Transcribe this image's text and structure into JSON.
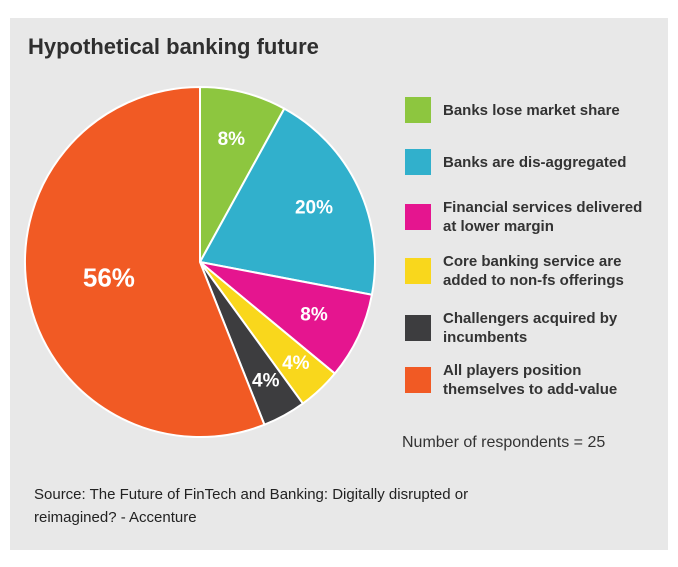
{
  "chart_data": {
    "type": "pie",
    "title": "Hypothetical banking future",
    "categories": [
      "Banks lose market share",
      "Banks are dis-aggregated",
      "Financial services delivered at lower margin",
      "Core banking service are added to non-fs offerings",
      "Challengers acquired by incumbents",
      "All players position themselves to add-value"
    ],
    "values": [
      8,
      20,
      8,
      4,
      4,
      56
    ],
    "value_labels": [
      "8%",
      "20%",
      "8%",
      "4%",
      "4%",
      "56%"
    ],
    "colors": [
      "#8dc63f",
      "#31b0cc",
      "#e5158f",
      "#f9d71c",
      "#3d3d3f",
      "#f15a24"
    ],
    "note": "Number of respondents = 25",
    "source": "Source: The Future of FinTech and Banking: Digitally disrupted or reimagined? - Accenture"
  }
}
